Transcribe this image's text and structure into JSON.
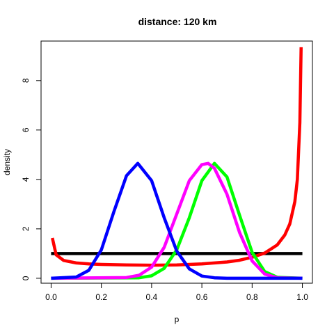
{
  "chart_data": {
    "type": "line",
    "title": "distance: 120 km",
    "xlabel": "p",
    "ylabel": "density",
    "xlim": [
      -0.04,
      1.04
    ],
    "ylim": [
      -0.2,
      9.6
    ],
    "xticks": [
      0.0,
      0.2,
      0.4,
      0.6,
      0.8,
      1.0
    ],
    "xtick_labels": [
      "0.0",
      "0.2",
      "0.4",
      "0.6",
      "0.8",
      "1.0"
    ],
    "yticks": [
      0,
      2,
      4,
      6,
      8
    ],
    "ytick_labels": [
      "0",
      "2",
      "4",
      "6",
      "8"
    ],
    "grid": false,
    "legend": "none",
    "series": [
      {
        "color": "#000000",
        "x": [
          0.0,
          1.0
        ],
        "y": [
          1.0,
          1.0
        ]
      },
      {
        "color": "#ff0000",
        "x": [
          0.005,
          0.02,
          0.05,
          0.1,
          0.15,
          0.2,
          0.3,
          0.4,
          0.5,
          0.6,
          0.7,
          0.75,
          0.8,
          0.85,
          0.9,
          0.93,
          0.95,
          0.97,
          0.98,
          0.99,
          0.995
        ],
        "y": [
          1.63,
          0.95,
          0.72,
          0.62,
          0.58,
          0.56,
          0.54,
          0.53,
          0.54,
          0.58,
          0.66,
          0.73,
          0.85,
          1.02,
          1.35,
          1.75,
          2.2,
          3.1,
          4.0,
          6.3,
          9.35
        ]
      },
      {
        "color": "#00ff00",
        "x": [
          0.0,
          0.35,
          0.4,
          0.45,
          0.5,
          0.55,
          0.6,
          0.65,
          0.7,
          0.75,
          0.8,
          0.85,
          0.9,
          1.0
        ],
        "y": [
          0.0,
          0.02,
          0.1,
          0.4,
          1.15,
          2.45,
          3.95,
          4.65,
          4.1,
          2.55,
          1.05,
          0.27,
          0.04,
          0.0
        ]
      },
      {
        "color": "#ff00ff",
        "x": [
          0.0,
          0.3,
          0.35,
          0.4,
          0.45,
          0.5,
          0.55,
          0.6,
          0.625,
          0.65,
          0.7,
          0.75,
          0.8,
          0.85,
          0.9,
          1.0
        ],
        "y": [
          0.0,
          0.03,
          0.12,
          0.45,
          1.25,
          2.6,
          3.95,
          4.6,
          4.65,
          4.45,
          3.4,
          1.85,
          0.7,
          0.17,
          0.02,
          0.0
        ]
      },
      {
        "color": "#0000ff",
        "x": [
          0.0,
          0.1,
          0.15,
          0.2,
          0.25,
          0.3,
          0.345,
          0.4,
          0.45,
          0.5,
          0.55,
          0.6,
          0.65,
          0.7,
          1.0
        ],
        "y": [
          0.0,
          0.05,
          0.32,
          1.15,
          2.7,
          4.15,
          4.65,
          3.95,
          2.45,
          1.1,
          0.38,
          0.09,
          0.02,
          0.0,
          0.0
        ]
      }
    ]
  }
}
